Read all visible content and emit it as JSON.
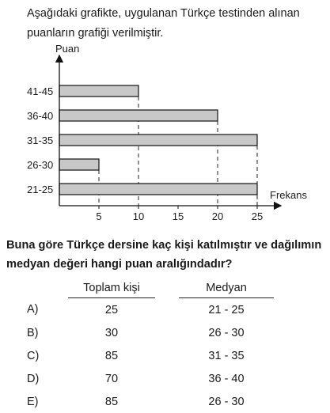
{
  "intro_text": "Aşağıdaki grafikte, uygulanan Türkçe testinden alınan puanların grafiği verilmiştir.",
  "chart_data": {
    "type": "bar",
    "orientation": "horizontal",
    "ylabel": "Puan",
    "xlabel": "Frekans",
    "categories": [
      "41-45",
      "36-40",
      "31-35",
      "26-30",
      "21-25"
    ],
    "values": [
      10,
      20,
      25,
      5,
      25
    ],
    "xticks": [
      5,
      10,
      15,
      20,
      25
    ],
    "xlim": [
      0,
      25
    ],
    "grid": false,
    "reference_lines": "dashed vertical lines from each bar end to the x-axis",
    "bar_color": "#c8c8c8"
  },
  "question": "Buna göre Türkçe dersine kaç kişi katılmıştır ve dağılımın medyan değeri hangi puan aralığındadır?",
  "table": {
    "headers": [
      "Toplam kişi",
      "Medyan"
    ],
    "options": [
      {
        "letter": "A)",
        "total": "25",
        "median": "21 - 25"
      },
      {
        "letter": "B)",
        "total": "30",
        "median": "26 - 30"
      },
      {
        "letter": "C)",
        "total": "85",
        "median": "31 - 35"
      },
      {
        "letter": "D)",
        "total": "70",
        "median": "36 - 40"
      },
      {
        "letter": "E)",
        "total": "85",
        "median": "26 - 30"
      }
    ]
  }
}
